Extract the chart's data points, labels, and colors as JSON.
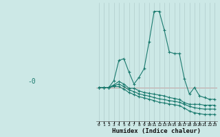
{
  "xlabel": "Humidex (Indice chaleur)",
  "ylabel": "-0",
  "x_values": [
    0,
    1,
    2,
    3,
    4,
    5,
    6,
    7,
    8,
    9,
    10,
    11,
    12,
    13,
    14,
    15,
    16,
    17,
    18,
    19,
    20,
    21,
    22,
    23
  ],
  "line1": [
    0.0,
    0.0,
    0.0,
    0.4,
    1.6,
    1.7,
    0.9,
    0.2,
    0.6,
    1.1,
    2.7,
    4.5,
    4.5,
    3.4,
    2.1,
    2.0,
    2.0,
    0.5,
    -0.4,
    0.0,
    -0.5,
    -0.6,
    -0.7,
    -0.7
  ],
  "line2": [
    0.0,
    0.0,
    0.0,
    0.15,
    0.35,
    0.2,
    -0.05,
    -0.05,
    -0.2,
    -0.3,
    -0.35,
    -0.4,
    -0.45,
    -0.5,
    -0.6,
    -0.65,
    -0.72,
    -0.9,
    -1.0,
    -1.0,
    -1.0,
    -1.05,
    -1.05,
    -1.05
  ],
  "line3": [
    0.0,
    0.0,
    0.0,
    0.1,
    0.2,
    0.05,
    -0.15,
    -0.25,
    -0.38,
    -0.45,
    -0.52,
    -0.6,
    -0.68,
    -0.72,
    -0.78,
    -0.82,
    -0.88,
    -1.0,
    -1.12,
    -1.2,
    -1.25,
    -1.28,
    -1.28,
    -1.28
  ],
  "line4": [
    0.0,
    0.0,
    0.0,
    0.05,
    0.05,
    -0.1,
    -0.3,
    -0.42,
    -0.55,
    -0.62,
    -0.7,
    -0.78,
    -0.88,
    -0.92,
    -0.98,
    -1.02,
    -1.08,
    -1.22,
    -1.4,
    -1.5,
    -1.55,
    -1.6,
    -1.6,
    -1.6
  ],
  "bg_color": "#cce8e6",
  "line_color": "#1a7a6e",
  "grid_color": "#b0cccb",
  "hline_color": "#c09090",
  "ylim": [
    -2.0,
    5.0
  ],
  "xlim": [
    -0.5,
    23.5
  ]
}
